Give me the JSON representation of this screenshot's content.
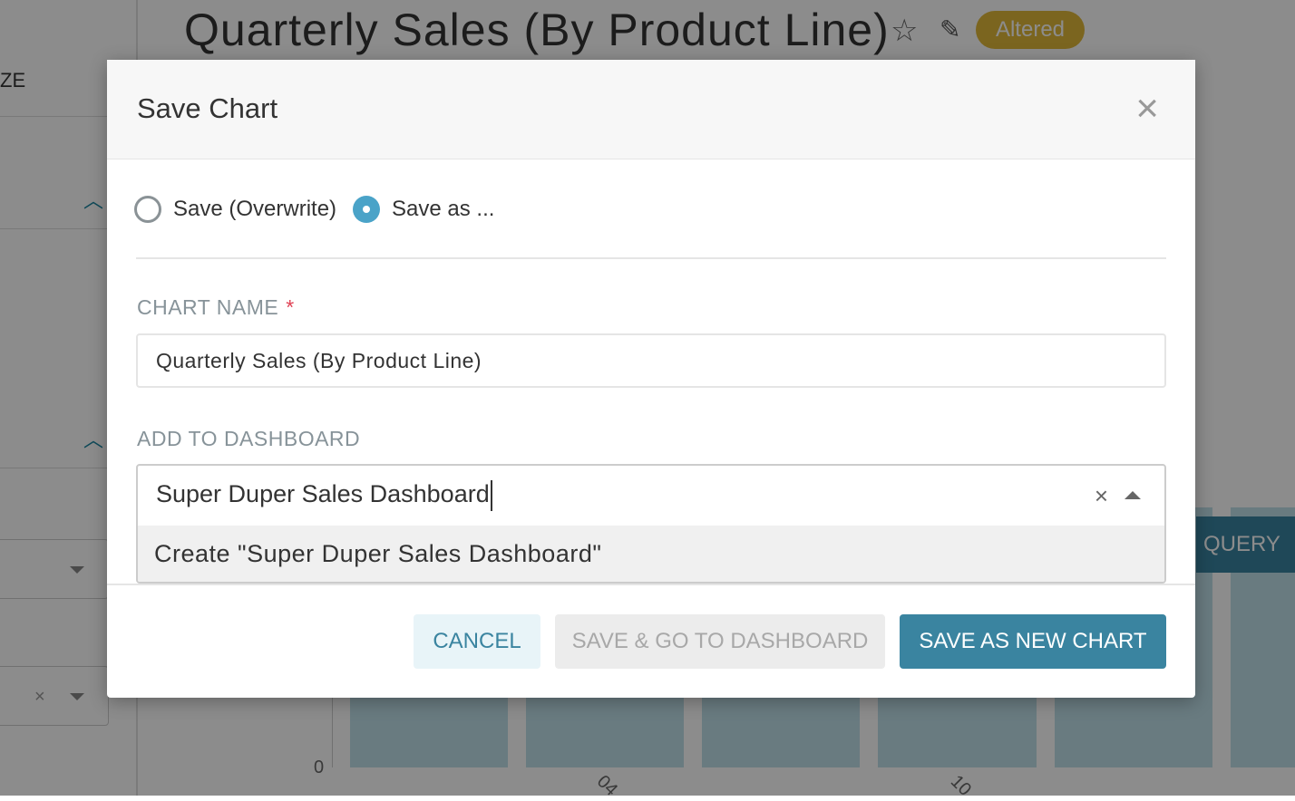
{
  "background": {
    "chart_title": "Quarterly Sales (By Product Line)",
    "badge": "Altered",
    "sidebar_fragment": "ZE",
    "run_query_fragment": "QUERY",
    "y_tick_zero": "0",
    "x_ticks": [
      "04",
      "10"
    ]
  },
  "modal": {
    "title": "Save Chart",
    "radios": [
      {
        "label": "Save (Overwrite)",
        "selected": false
      },
      {
        "label": "Save as ...",
        "selected": true
      }
    ],
    "chart_name_label": "CHART NAME",
    "required_mark": "*",
    "chart_name_value": "Quarterly Sales (By Product Line)",
    "dashboard_label": "ADD TO DASHBOARD",
    "dashboard_value": "Super Duper Sales Dashboard",
    "dashboard_option": "Create \"Super Duper Sales Dashboard\"",
    "buttons": {
      "cancel": "CANCEL",
      "save_go": "SAVE & GO TO DASHBOARD",
      "save_new": "SAVE AS NEW CHART"
    }
  },
  "colors": {
    "primary": "#3a84a0",
    "radio": "#4aa3c8",
    "badge": "#e0b83a",
    "required": "#e04355"
  }
}
